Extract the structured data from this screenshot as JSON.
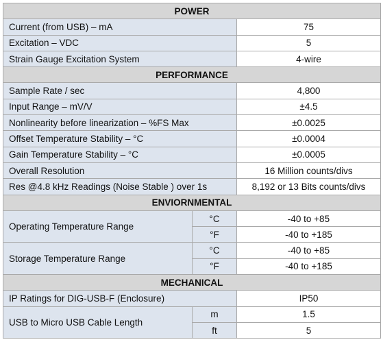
{
  "sections": [
    {
      "title": "POWER",
      "rows": [
        {
          "label": "Current (from USB) – mA",
          "value": "75"
        },
        {
          "label": "Excitation – VDC",
          "value": "5"
        },
        {
          "label": "Strain Gauge Excitation System",
          "value": "4-wire"
        }
      ]
    },
    {
      "title": "PERFORMANCE",
      "rows": [
        {
          "label": "Sample Rate / sec",
          "value": "4,800"
        },
        {
          "label": "Input Range – mV/V",
          "value": "±4.5"
        },
        {
          "label": "Nonlinearity before linearization – %FS Max",
          "value": "±0.0025"
        },
        {
          "label": "Offset Temperature Stability – °C",
          "value": "±0.0004"
        },
        {
          "label": "Gain Temperature Stability – °C",
          "value": "±0.0005"
        },
        {
          "label": "Overall Resolution",
          "value": "16 Million counts/divs"
        },
        {
          "label": "Res @4.8 kHz Readings (Noise Stable ) over 1s",
          "value": "8,192 or 13 Bits counts/divs"
        }
      ]
    },
    {
      "title": "ENVIORNMENTAL",
      "rows": [
        {
          "label": "Operating Temperature Range",
          "units": [
            {
              "unit": "°C",
              "value": "-40 to +85"
            },
            {
              "unit": "°F",
              "value": "-40 to +185"
            }
          ]
        },
        {
          "label": "Storage Temperature Range",
          "units": [
            {
              "unit": "°C",
              "value": "-40 to +85"
            },
            {
              "unit": "°F",
              "value": "-40 to +185"
            }
          ]
        }
      ]
    },
    {
      "title": "MECHANICAL",
      "rows": [
        {
          "label": "IP Ratings for DIG-USB-F (Enclosure)",
          "value": "IP50"
        },
        {
          "label": "USB to Micro USB Cable Length",
          "units": [
            {
              "unit": "m",
              "value": "1.5"
            },
            {
              "unit": "ft",
              "value": "5"
            }
          ]
        }
      ]
    }
  ]
}
